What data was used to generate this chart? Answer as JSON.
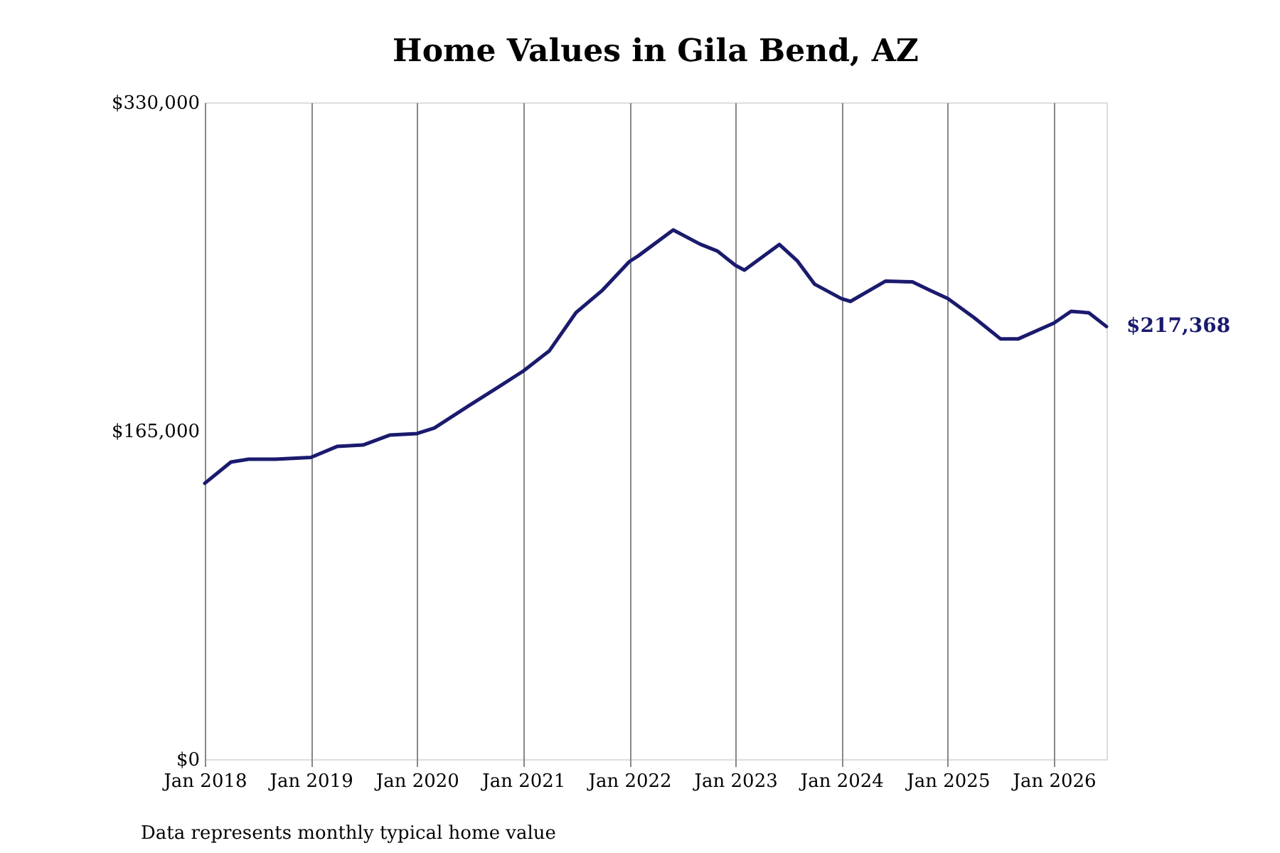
{
  "chart_data": {
    "type": "line",
    "title": "Home Values in Gila Bend, AZ",
    "x": [
      "2018-01",
      "2018-04",
      "2018-06",
      "2018-09",
      "2019-01",
      "2019-04",
      "2019-07",
      "2019-10",
      "2020-01",
      "2020-03",
      "2020-07",
      "2020-10",
      "2021-01",
      "2021-04",
      "2021-07",
      "2021-10",
      "2022-01",
      "2022-02",
      "2022-06",
      "2022-09",
      "2022-11",
      "2023-01",
      "2023-02",
      "2023-06",
      "2023-08",
      "2023-10",
      "2024-01",
      "2024-02",
      "2024-06",
      "2024-09",
      "2024-11",
      "2025-01",
      "2025-04",
      "2025-07",
      "2025-09",
      "2026-01",
      "2026-03",
      "2026-05",
      "2026-07"
    ],
    "series": [
      {
        "color": "#1a1a6e",
        "values": [
          138600,
          149300,
          150700,
          150700,
          151600,
          157100,
          157900,
          162900,
          163600,
          166400,
          177900,
          186400,
          195000,
          205200,
          224300,
          235700,
          250000,
          252900,
          265900,
          258800,
          255200,
          248100,
          245700,
          258600,
          250500,
          238600,
          231400,
          230000,
          240200,
          239800,
          235500,
          231400,
          221900,
          211200,
          211200,
          219100,
          225000,
          224300,
          217368
        ]
      }
    ],
    "xlim": [
      "2018-01",
      "2026-07"
    ],
    "xticks": [
      {
        "value": "2018-01",
        "label": "Jan 2018"
      },
      {
        "value": "2019-01",
        "label": "Jan 2019"
      },
      {
        "value": "2020-01",
        "label": "Jan 2020"
      },
      {
        "value": "2021-01",
        "label": "Jan 2021"
      },
      {
        "value": "2022-01",
        "label": "Jan 2022"
      },
      {
        "value": "2023-01",
        "label": "Jan 2023"
      },
      {
        "value": "2024-01",
        "label": "Jan 2024"
      },
      {
        "value": "2025-01",
        "label": "Jan 2025"
      },
      {
        "value": "2026-01",
        "label": "Jan 2026"
      }
    ],
    "ylim": [
      0,
      330000
    ],
    "yticks": [
      {
        "value": 0,
        "label": "$0"
      },
      {
        "value": 165000,
        "label": "$165,000"
      },
      {
        "value": 330000,
        "label": "$330,000"
      }
    ],
    "grid": "x",
    "marker": "none",
    "line_style": "solid",
    "annotations": [
      {
        "text": "$217,368",
        "x": "2026-07",
        "y": 217368
      },
      "Data represents monthly typical home value"
    ]
  }
}
